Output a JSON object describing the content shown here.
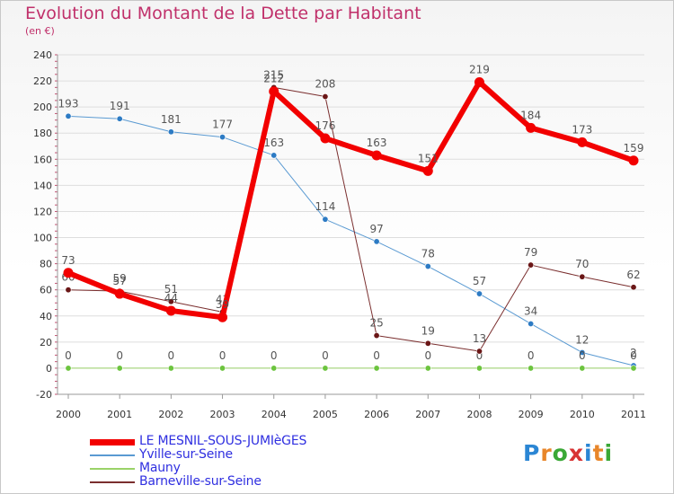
{
  "title": "Evolution du Montant de la Dette par Habitant",
  "subtitle": "(en €)",
  "logo": {
    "text": "Proxiti",
    "letter_colors": [
      "#2b86d4",
      "#e8862a",
      "#3aa836",
      "#d83232",
      "#2b86d4",
      "#e8862a",
      "#3aa836"
    ]
  },
  "chart_data": {
    "type": "line",
    "x": [
      "2000",
      "2001",
      "2002",
      "2003",
      "2004",
      "2005",
      "2006",
      "2007",
      "2008",
      "2009",
      "2010",
      "2011"
    ],
    "ylim": [
      -20,
      240
    ],
    "yticks": [
      -20,
      0,
      20,
      40,
      60,
      80,
      100,
      120,
      140,
      160,
      180,
      200,
      220,
      240
    ],
    "grid": "horizontal",
    "series": [
      {
        "name": "Yville-sur-Seine",
        "color": "#5a9ad2",
        "marker": "#2d7bc4",
        "width": 1,
        "values": [
          193,
          191,
          181,
          177,
          163,
          114,
          97,
          78,
          57,
          34,
          12,
          2
        ],
        "labels": [
          "193",
          "191",
          "181",
          "177",
          "163",
          "114",
          "97",
          "78",
          "57",
          "34",
          "12",
          "2"
        ]
      },
      {
        "name": "Mauny",
        "color": "#9ad268",
        "marker": "#6cc43e",
        "width": 1,
        "values": [
          0,
          0,
          0,
          0,
          0,
          0,
          0,
          0,
          0,
          0,
          0,
          0
        ],
        "labels": [
          "0",
          "0",
          "0",
          "0",
          "0",
          "0",
          "0",
          "0",
          "0",
          "0",
          "0",
          "0"
        ]
      },
      {
        "name": "Barneville-sur-Seine",
        "color": "#7a2e2e",
        "marker": "#6a1616",
        "width": 1,
        "values": [
          60,
          59,
          51,
          43,
          215,
          208,
          25,
          19,
          13,
          79,
          70,
          62
        ],
        "labels": [
          "60",
          "59",
          "51",
          "43",
          "215",
          "208",
          "25",
          "19",
          "13",
          "79",
          "70",
          "62"
        ]
      },
      {
        "name": "LE MESNIL-SOUS-JUMIèGES",
        "color": "#f20000",
        "marker": "#f20000",
        "width": 6,
        "values": [
          73,
          57,
          44,
          39,
          212,
          176,
          163,
          151,
          219,
          184,
          173,
          159
        ],
        "labels": [
          "73",
          "57",
          "44",
          "39",
          "212",
          "176",
          "163",
          "151",
          "219",
          "184",
          "173",
          "159"
        ]
      }
    ],
    "legend_order": [
      {
        "name": "LE MESNIL-SOUS-JUMIèGES",
        "color": "#f20000",
        "thickness": 7
      },
      {
        "name": "Yville-sur-Seine",
        "color": "#5a9ad2",
        "thickness": 2
      },
      {
        "name": "Mauny",
        "color": "#9ad268",
        "thickness": 2
      },
      {
        "name": "Barneville-sur-Seine",
        "color": "#7a2e2e",
        "thickness": 2
      }
    ]
  }
}
